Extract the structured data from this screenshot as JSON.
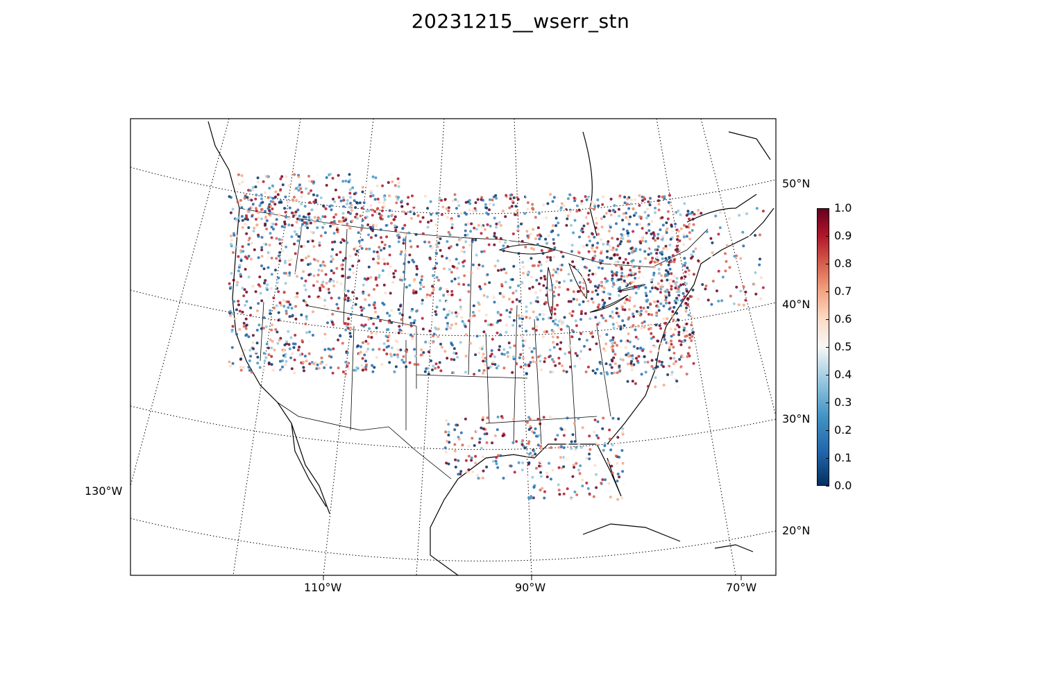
{
  "title": "20231215__wserr_stn",
  "map": {
    "parallel_labels": [
      "50°N",
      "40°N",
      "30°N",
      "20°N"
    ],
    "meridian_labels": [
      "130°W",
      "110°W",
      "90°W",
      "70°W"
    ]
  },
  "colorbar": {
    "min": 0.0,
    "max": 1.0,
    "ticks": [
      "0.0",
      "0.1",
      "0.2",
      "0.3",
      "0.4",
      "0.5",
      "0.6",
      "0.7",
      "0.8",
      "0.9",
      "1.0"
    ],
    "colormap": "RdBu_r",
    "colors": [
      "#053061",
      "#2166ac",
      "#4393c3",
      "#92c5de",
      "#f7f7f7",
      "#fddbc7",
      "#f4a582",
      "#d6604d",
      "#b2182b",
      "#67001f"
    ]
  },
  "chart_data": {
    "type": "scatter",
    "title": "20231215__wserr_stn",
    "description_value": "station wind-speed error values 0.0–1.0 plotted over a conic map of North America",
    "ylim": [
      0.0,
      1.0
    ],
    "series": []
  }
}
